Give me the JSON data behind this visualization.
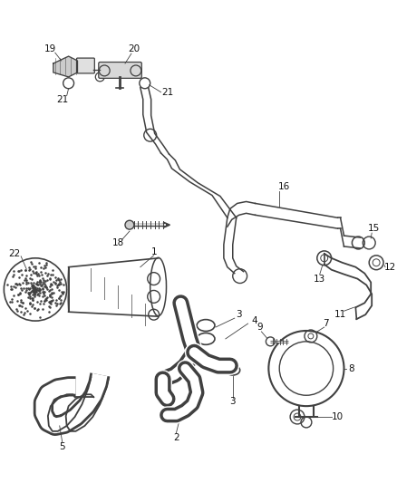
{
  "bg_color": "#ffffff",
  "line_color": "#404040",
  "text_color": "#111111",
  "fig_width": 4.38,
  "fig_height": 5.33,
  "dpi": 100,
  "lw": 1.1
}
